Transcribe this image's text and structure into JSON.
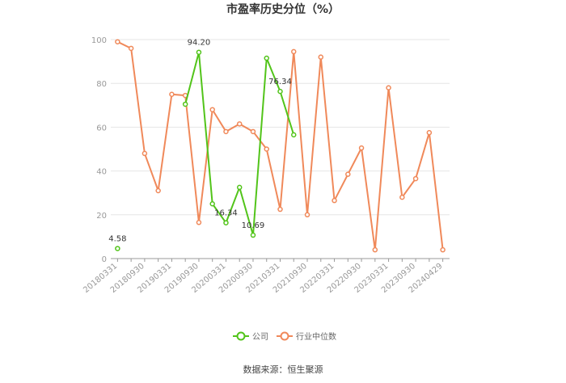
{
  "chart_data": {
    "type": "line",
    "title": "市盈率历史分位（%）",
    "xlabel": "",
    "ylabel": "",
    "ylim": [
      0,
      100
    ],
    "yticks": [
      0,
      20,
      40,
      60,
      80,
      100
    ],
    "grid": true,
    "legend_position": "bottom-center",
    "x": [
      "20180331",
      "20180630",
      "20180930",
      "20181231",
      "20190331",
      "20190630",
      "20190930",
      "20191231",
      "20200331",
      "20200630",
      "20200930",
      "20201231",
      "20210331",
      "20210630",
      "20210930",
      "20211231",
      "20220331",
      "20220630",
      "20220930",
      "20221231",
      "20230331",
      "20230630",
      "20230930",
      "20231231",
      "20240429"
    ],
    "x_tick_labels": [
      "20180331",
      "20180930",
      "20190331",
      "20190930",
      "20200331",
      "20200930",
      "20210331",
      "20210930",
      "20220331",
      "20220930",
      "20230331",
      "20230930",
      "20240429"
    ],
    "series": [
      {
        "name": "公司",
        "color": "#52c41a",
        "values": [
          4.58,
          null,
          null,
          null,
          null,
          70.5,
          94.2,
          25.0,
          16.34,
          32.5,
          10.69,
          91.5,
          76.34,
          56.5,
          null,
          null,
          null,
          null,
          null,
          null,
          null,
          null,
          null,
          null,
          null
        ]
      },
      {
        "name": "行业中位数",
        "color": "#f0895a",
        "values": [
          99.0,
          96.0,
          48.0,
          31.0,
          75.0,
          74.5,
          16.5,
          68.0,
          58.0,
          61.5,
          58.0,
          50.0,
          22.5,
          94.5,
          20.0,
          92.0,
          26.5,
          38.5,
          50.5,
          4.0,
          78.0,
          28.0,
          36.5,
          57.5,
          4.0
        ]
      }
    ],
    "data_labels": [
      {
        "series": 0,
        "index": 0,
        "text": "4.58"
      },
      {
        "series": 0,
        "index": 6,
        "text": "94.20"
      },
      {
        "series": 0,
        "index": 8,
        "text": "16.34"
      },
      {
        "series": 0,
        "index": 10,
        "text": "10.69"
      },
      {
        "series": 0,
        "index": 12,
        "text": "76.34"
      }
    ]
  },
  "source": "数据来源：恒生聚源"
}
